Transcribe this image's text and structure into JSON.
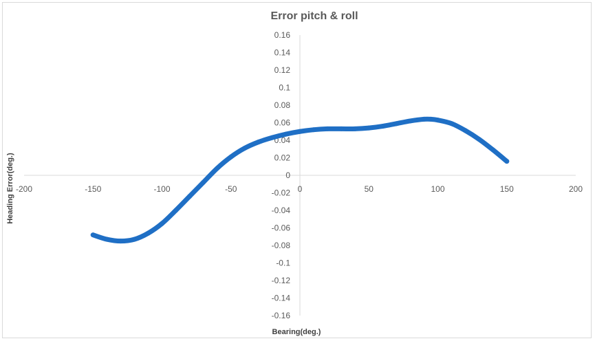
{
  "chart_data": {
    "type": "scatter",
    "title": "Error pitch & roll",
    "xlabel": "Bearing(deg.)",
    "ylabel": "Heading Error(deg.)",
    "xlim": [
      -200,
      200
    ],
    "ylim": [
      -0.16,
      0.16
    ],
    "x_ticks": [
      "-200",
      "-150",
      "-100",
      "-50",
      "0",
      "50",
      "100",
      "150",
      "200"
    ],
    "y_ticks": [
      "0.16",
      "0.14",
      "0.12",
      "0.1",
      "0.08",
      "0.06",
      "0.04",
      "0.02",
      "0",
      "-0.02",
      "-0.04",
      "-0.06",
      "-0.08",
      "-0.1",
      "-0.12",
      "-0.14",
      "-0.16"
    ],
    "grid": false,
    "legend": "none",
    "series_color": "#1f6fc5",
    "series": [
      {
        "x": [
          -150,
          -140,
          -130,
          -120,
          -110,
          -100,
          -90,
          -80,
          -70,
          -60,
          -50,
          -40,
          -30,
          -20,
          -10,
          0,
          10,
          20,
          30,
          40,
          50,
          60,
          70,
          80,
          90,
          95,
          100,
          110,
          120,
          130,
          140,
          150
        ],
        "y": [
          -0.068,
          -0.073,
          -0.075,
          -0.073,
          -0.066,
          -0.055,
          -0.04,
          -0.024,
          -0.008,
          0.008,
          0.021,
          0.031,
          0.038,
          0.043,
          0.047,
          0.05,
          0.052,
          0.053,
          0.053,
          0.053,
          0.054,
          0.056,
          0.059,
          0.062,
          0.064,
          0.064,
          0.063,
          0.059,
          0.051,
          0.041,
          0.029,
          0.016
        ]
      }
    ]
  }
}
